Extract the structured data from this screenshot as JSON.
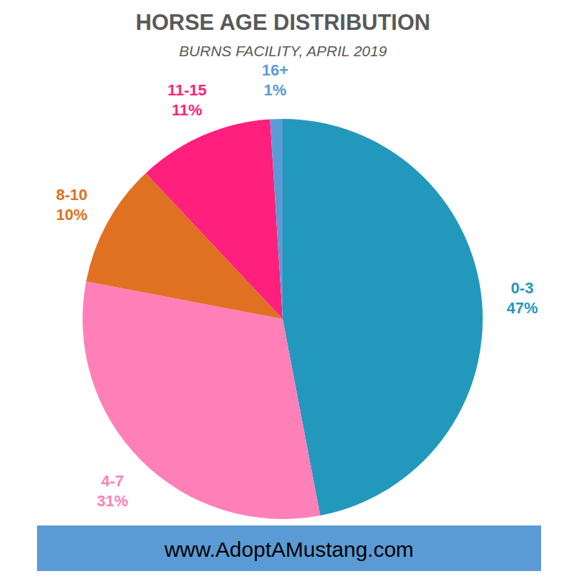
{
  "chart_data": {
    "type": "pie",
    "title": "HORSE AGE DISTRIBUTION",
    "subtitle": "BURNS FACILITY, APRIL 2019",
    "categories": [
      "0-3",
      "4-7",
      "8-10",
      "11-15",
      "16+"
    ],
    "values": [
      47,
      31,
      10,
      11,
      1
    ],
    "value_labels": [
      "47%",
      "31%",
      "10%",
      "11%",
      "1%"
    ],
    "colors": [
      "#2398bd",
      "#ff80b8",
      "#e07022",
      "#ff1f7c",
      "#5b9bd5"
    ],
    "data_labels": true,
    "annotations": [
      "www.AdoptAMustang.com"
    ]
  }
}
